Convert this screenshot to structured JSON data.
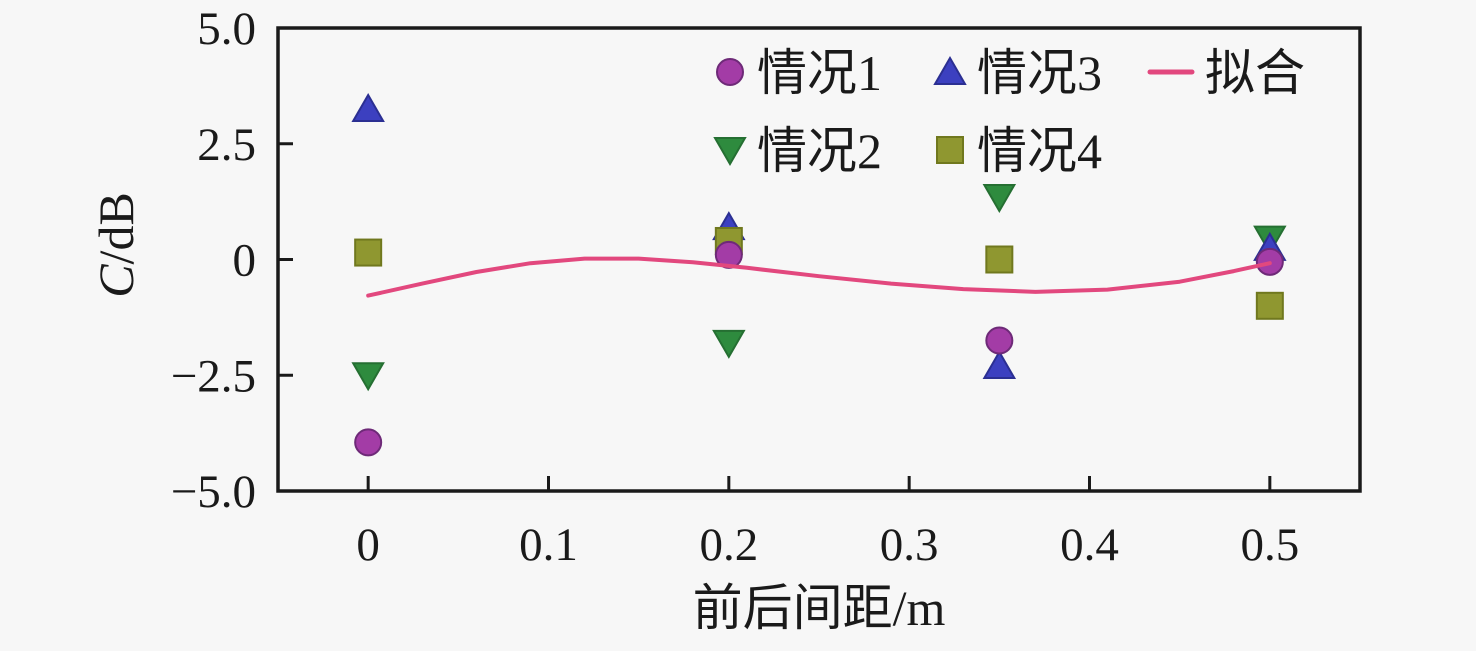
{
  "figure": {
    "background_color": "#f7f7f7",
    "frame_color": "#1a1a1a",
    "text_color": "#1a1a1a"
  },
  "chart_data": {
    "type": "scatter",
    "title": "",
    "xlabel": "前后间距/m",
    "ylabel": "C/dB",
    "xlim": [
      -0.05,
      0.55
    ],
    "ylim": [
      -5.0,
      5.0
    ],
    "grid": false,
    "x_ticks": {
      "values": [
        0,
        0.1,
        0.2,
        0.3,
        0.4,
        0.5
      ],
      "labels": [
        "0",
        "0.1",
        "0.2",
        "0.3",
        "0.4",
        "0.5"
      ]
    },
    "y_ticks": {
      "values": [
        -5.0,
        -2.5,
        0,
        2.5,
        5.0
      ],
      "labels": [
        "−5.0",
        "−2.5",
        "0",
        "2.5",
        "5.0"
      ],
      "inner_mark_values": [
        -2.5,
        0,
        2.5
      ]
    },
    "series": [
      {
        "name": "情况1",
        "marker": "circle",
        "fill": "#A33CA6",
        "edge": "#6E2A78",
        "x": [
          0,
          0.2,
          0.35,
          0.5
        ],
        "y": [
          -3.95,
          0.1,
          -1.75,
          -0.05
        ]
      },
      {
        "name": "情况2",
        "marker": "triangle-down",
        "fill": "#2E8B3E",
        "edge": "#256F32",
        "x": [
          0,
          0.2,
          0.35,
          0.5
        ],
        "y": [
          -2.5,
          -1.8,
          1.35,
          0.45
        ]
      },
      {
        "name": "情况3",
        "marker": "triangle-up",
        "fill": "#3C40C0",
        "edge": "#2B2F92",
        "x": [
          0,
          0.2,
          0.35,
          0.5
        ],
        "y": [
          3.25,
          0.7,
          -2.3,
          0.25
        ]
      },
      {
        "name": "情况4",
        "marker": "square",
        "fill": "#8F9730",
        "edge": "#70781E",
        "x": [
          0,
          0.2,
          0.35,
          0.5
        ],
        "y": [
          0.15,
          0.4,
          0.0,
          -1.0
        ]
      }
    ],
    "fit_line": {
      "name": "拟合",
      "color": "#E2487E",
      "x": [
        0,
        0.03,
        0.06,
        0.09,
        0.12,
        0.15,
        0.18,
        0.21,
        0.25,
        0.29,
        0.33,
        0.37,
        0.41,
        0.45,
        0.48,
        0.5
      ],
      "y": [
        -0.78,
        -0.52,
        -0.27,
        -0.08,
        0.02,
        0.02,
        -0.06,
        -0.18,
        -0.36,
        -0.52,
        -0.64,
        -0.7,
        -0.65,
        -0.48,
        -0.25,
        -0.08
      ]
    },
    "legend": {
      "position": "top-center-inside",
      "columns": 3,
      "entries": [
        {
          "label": "情况1",
          "marker": "circle",
          "row": 0,
          "col": 0,
          "series_index": 0
        },
        {
          "label": "情况2",
          "marker": "triangle-down",
          "row": 1,
          "col": 0,
          "series_index": 1
        },
        {
          "label": "情况3",
          "marker": "triangle-up",
          "row": 0,
          "col": 1,
          "series_index": 2
        },
        {
          "label": "情况4",
          "marker": "square",
          "row": 1,
          "col": 1,
          "series_index": 3
        },
        {
          "label": "拟合",
          "marker": "line",
          "row": 0,
          "col": 2,
          "series_index": "fit"
        }
      ]
    }
  }
}
